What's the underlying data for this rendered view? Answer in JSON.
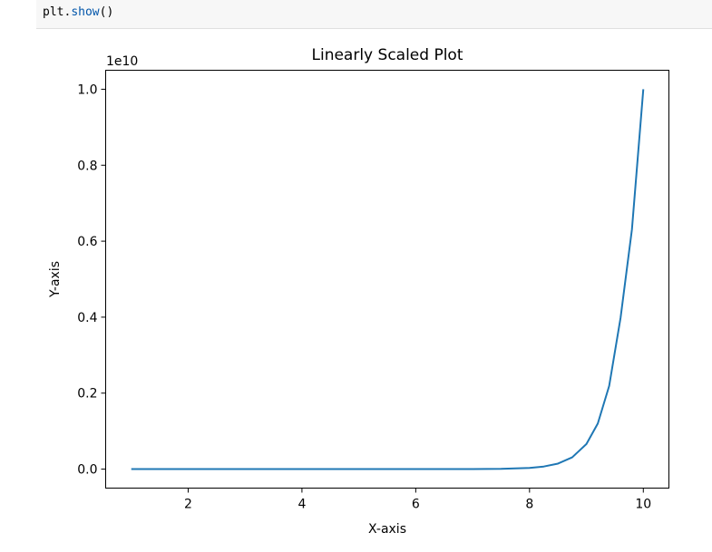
{
  "code_cell": {
    "line_obj": "plt",
    "line_dot": ".",
    "line_fn": "show",
    "line_args": "()"
  },
  "chart_data": {
    "type": "line",
    "title": "Linearly Scaled Plot",
    "xlabel": "X-axis",
    "ylabel": "Y-axis",
    "offset_text": "1e10",
    "xlim": [
      0.55,
      10.45
    ],
    "ylim": [
      -0.05,
      1.05
    ],
    "xticks": [
      2,
      4,
      6,
      8,
      10
    ],
    "xtick_labels": [
      "2",
      "4",
      "6",
      "8",
      "10"
    ],
    "yticks": [
      0.0,
      0.2,
      0.4,
      0.6,
      0.8,
      1.0
    ],
    "ytick_labels": [
      "0.0",
      "0.2",
      "0.4",
      "0.6",
      "0.8",
      "1.0"
    ],
    "grid": false,
    "series": [
      {
        "color": "#1f77b4",
        "x": [
          1,
          2,
          3,
          4,
          5,
          6,
          6.5,
          7,
          7.5,
          8,
          8.25,
          8.5,
          8.75,
          9,
          9.2,
          9.4,
          9.6,
          9.8,
          10
        ],
        "y": [
          0.0,
          0.0,
          0.0,
          0.0,
          0.0,
          0.0,
          3e-05,
          0.00016,
          0.0007,
          0.0032,
          0.0068,
          0.0145,
          0.031,
          0.066,
          0.12,
          0.219,
          0.398,
          0.631,
          1.0
        ]
      }
    ]
  }
}
